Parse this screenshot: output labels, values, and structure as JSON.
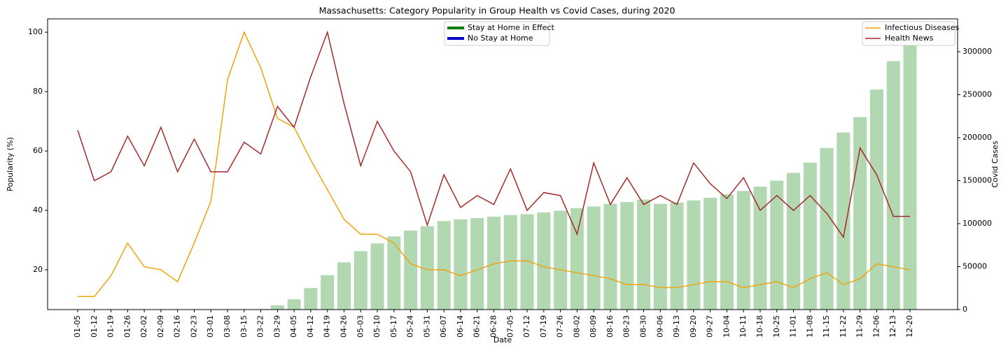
{
  "chart_data": {
    "type": "combo",
    "title": "Massachusetts: Category Popularity in Group Health vs Covid Cases, during 2020",
    "x_label": "Date",
    "y_label": "Popularity (%)",
    "y2_label": "Covid Cases",
    "categories": [
      "01-05",
      "01-12",
      "01-19",
      "01-26",
      "02-02",
      "02-09",
      "02-16",
      "02-23",
      "03-01",
      "03-08",
      "03-15",
      "03-22",
      "03-29",
      "04-05",
      "04-12",
      "04-19",
      "04-26",
      "05-03",
      "05-10",
      "05-17",
      "05-24",
      "05-31",
      "06-07",
      "06-14",
      "06-21",
      "06-28",
      "07-05",
      "07-12",
      "07-19",
      "07-26",
      "08-02",
      "08-09",
      "08-16",
      "08-23",
      "08-30",
      "09-06",
      "09-13",
      "09-20",
      "09-27",
      "10-04",
      "10-11",
      "10-18",
      "10-25",
      "11-01",
      "11-08",
      "11-15",
      "11-22",
      "11-29",
      "12-06",
      "12-13",
      "12-20"
    ],
    "ylim": [
      6.6,
      104.5
    ],
    "yticks": [
      20,
      40,
      60,
      80,
      100
    ],
    "y2lim": [
      0,
      338200
    ],
    "y2ticks": [
      0,
      50000,
      100000,
      150000,
      200000,
      250000,
      300000
    ],
    "series": [
      {
        "type": "bar",
        "axis": "y2",
        "color": "#b1d8b1",
        "values": [
          0,
          0,
          0,
          0,
          0,
          0,
          0,
          0,
          0,
          0,
          0,
          500,
          5000,
          12000,
          25000,
          40000,
          55000,
          68000,
          77000,
          85000,
          92000,
          97000,
          103000,
          105000,
          106500,
          108000,
          110000,
          111000,
          113000,
          115000,
          118000,
          120000,
          123000,
          125000,
          128000,
          123000,
          124500,
          127000,
          130000,
          134000,
          138000,
          143000,
          150000,
          159000,
          171000,
          188000,
          206000,
          224000,
          256000,
          289000,
          322000
        ]
      },
      {
        "type": "line",
        "name": "Infectious Diseases",
        "color": "#f0a30a",
        "values": [
          11,
          11,
          18,
          29,
          21,
          20,
          16,
          29,
          43,
          84,
          100,
          88,
          71,
          68,
          57,
          47,
          37,
          32,
          32,
          29,
          22,
          20,
          20,
          18,
          20,
          22,
          23,
          23,
          21,
          20,
          19,
          18,
          17,
          15,
          15,
          14,
          14,
          15,
          16,
          16,
          14,
          15,
          16,
          14,
          17,
          19,
          15,
          17,
          22,
          21,
          20
        ]
      },
      {
        "type": "line",
        "name": "Health News",
        "color": "#a52a2a",
        "values": [
          67,
          50,
          53,
          65,
          55,
          68,
          53,
          64,
          53,
          53,
          63,
          59,
          75,
          68,
          85,
          100,
          76,
          55,
          70,
          60,
          53,
          35,
          52,
          41,
          45,
          42,
          54,
          40,
          46,
          45,
          32,
          56,
          42,
          51,
          42,
          45,
          42,
          56,
          49,
          44,
          51,
          40,
          45,
          40,
          45,
          39,
          31,
          61,
          52,
          38,
          38
        ]
      }
    ],
    "status_legend": [
      {
        "name": "Stay at Home in Effect",
        "color": "#008000"
      },
      {
        "name": "No Stay at Home",
        "color": "#0000cd"
      }
    ]
  }
}
